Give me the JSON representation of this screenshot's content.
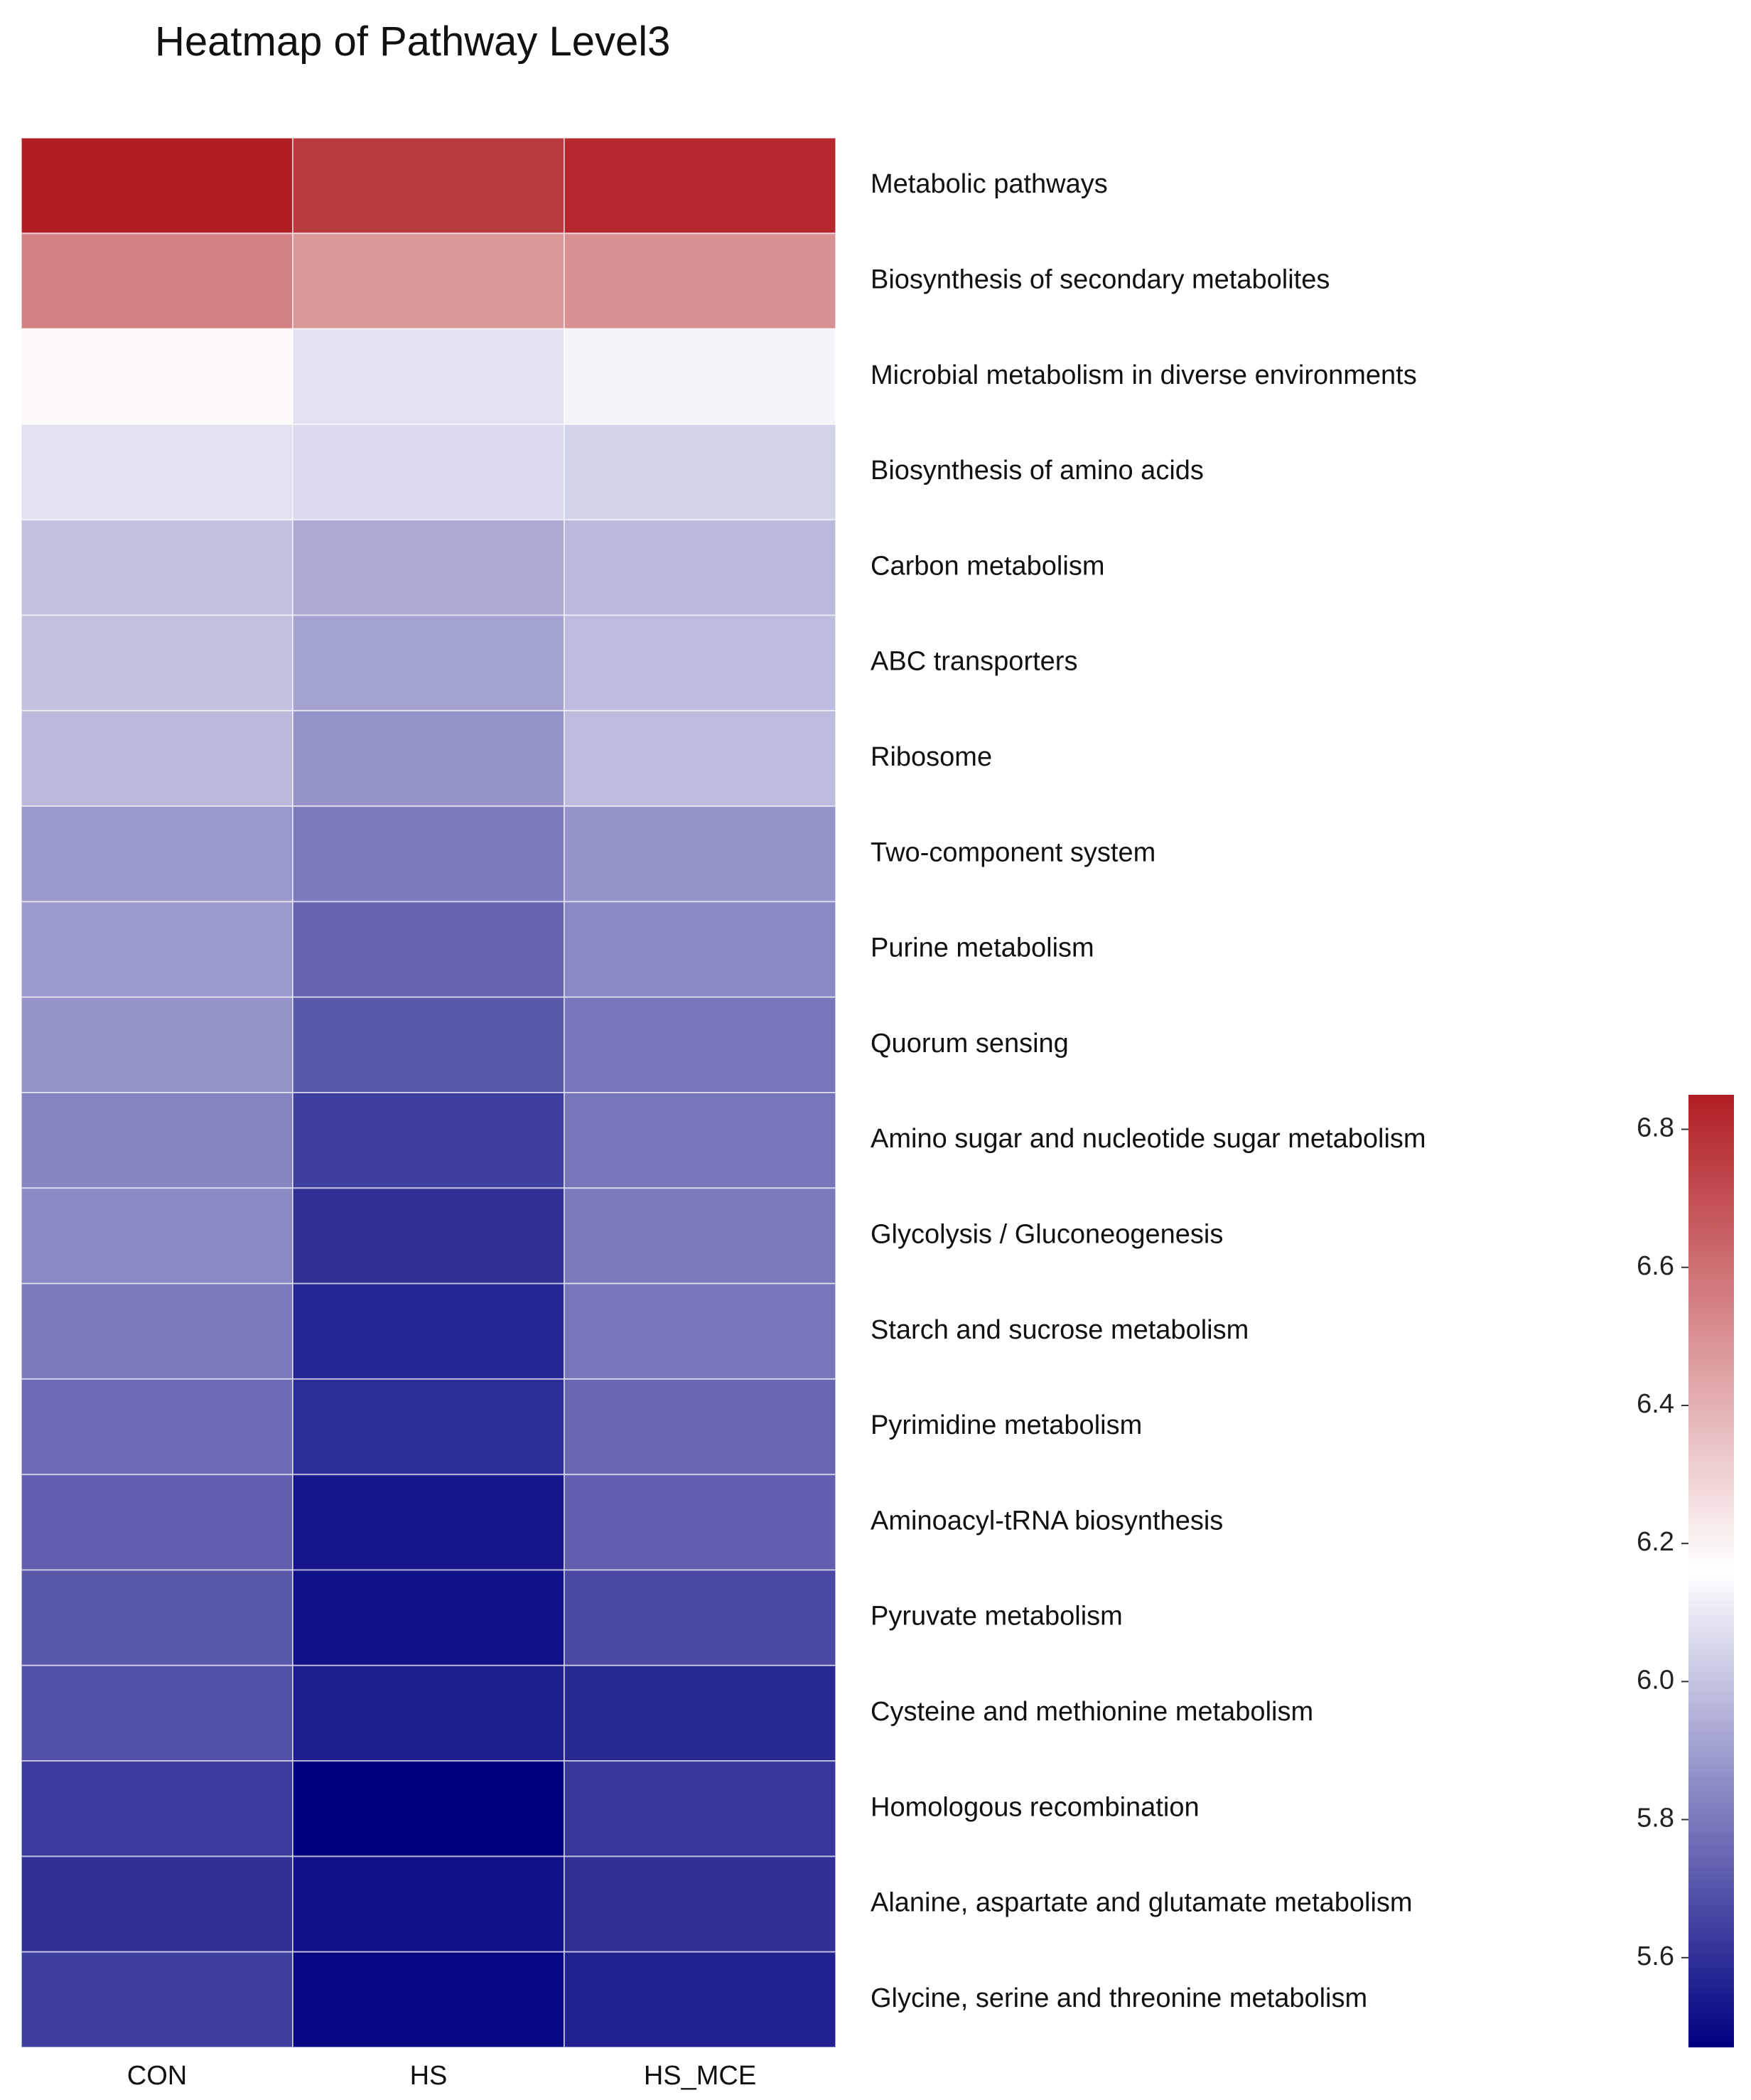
{
  "chart_data": {
    "type": "heatmap",
    "title": "Heatmap of Pathway Level3",
    "columns": [
      "CON",
      "HS",
      "HS_MCE"
    ],
    "rows": [
      "Metabolic pathways",
      "Biosynthesis of secondary metabolites",
      "Microbial metabolism in diverse environments",
      "Biosynthesis of amino acids",
      "Carbon metabolism",
      "ABC transporters",
      "Ribosome",
      "Two-component system",
      "Purine metabolism",
      "Quorum sensing",
      "Amino sugar and nucleotide sugar metabolism",
      "Glycolysis / Gluconeogenesis",
      "Starch and sucrose metabolism",
      "Pyrimidine metabolism",
      "Aminoacyl-tRNA biosynthesis",
      "Pyruvate metabolism",
      "Cysteine and methionine metabolism",
      "Homologous recombination",
      "Alanine, aspartate and glutamate metabolism",
      "Glycine, serine and threonine metabolism"
    ],
    "values": [
      [
        6.85,
        6.76,
        6.82
      ],
      [
        6.55,
        6.48,
        6.5
      ],
      [
        6.18,
        6.08,
        6.13
      ],
      [
        6.08,
        6.06,
        6.04
      ],
      [
        5.99,
        5.93,
        5.97
      ],
      [
        5.99,
        5.91,
        5.98
      ],
      [
        5.97,
        5.87,
        5.98
      ],
      [
        5.88,
        5.8,
        5.87
      ],
      [
        5.89,
        5.74,
        5.84
      ],
      [
        5.87,
        5.71,
        5.79
      ],
      [
        5.83,
        5.64,
        5.79
      ],
      [
        5.84,
        5.6,
        5.8
      ],
      [
        5.8,
        5.57,
        5.79
      ],
      [
        5.76,
        5.59,
        5.75
      ],
      [
        5.73,
        5.53,
        5.73
      ],
      [
        5.71,
        5.52,
        5.67
      ],
      [
        5.69,
        5.55,
        5.58
      ],
      [
        5.63,
        5.47,
        5.62
      ],
      [
        5.6,
        5.52,
        5.6
      ],
      [
        5.64,
        5.49,
        5.56
      ]
    ],
    "colorbar": {
      "min": 5.47,
      "max": 6.85,
      "ticks": [
        5.6,
        5.8,
        6.0,
        6.2,
        6.4,
        6.6,
        6.8
      ],
      "tick_labels": [
        "5.6",
        "5.8",
        "6.0",
        "6.2",
        "6.4",
        "6.6",
        "6.8"
      ],
      "colors": {
        "low": "#00007f",
        "mid": "#ffffff",
        "high": "#b01e23"
      }
    }
  }
}
